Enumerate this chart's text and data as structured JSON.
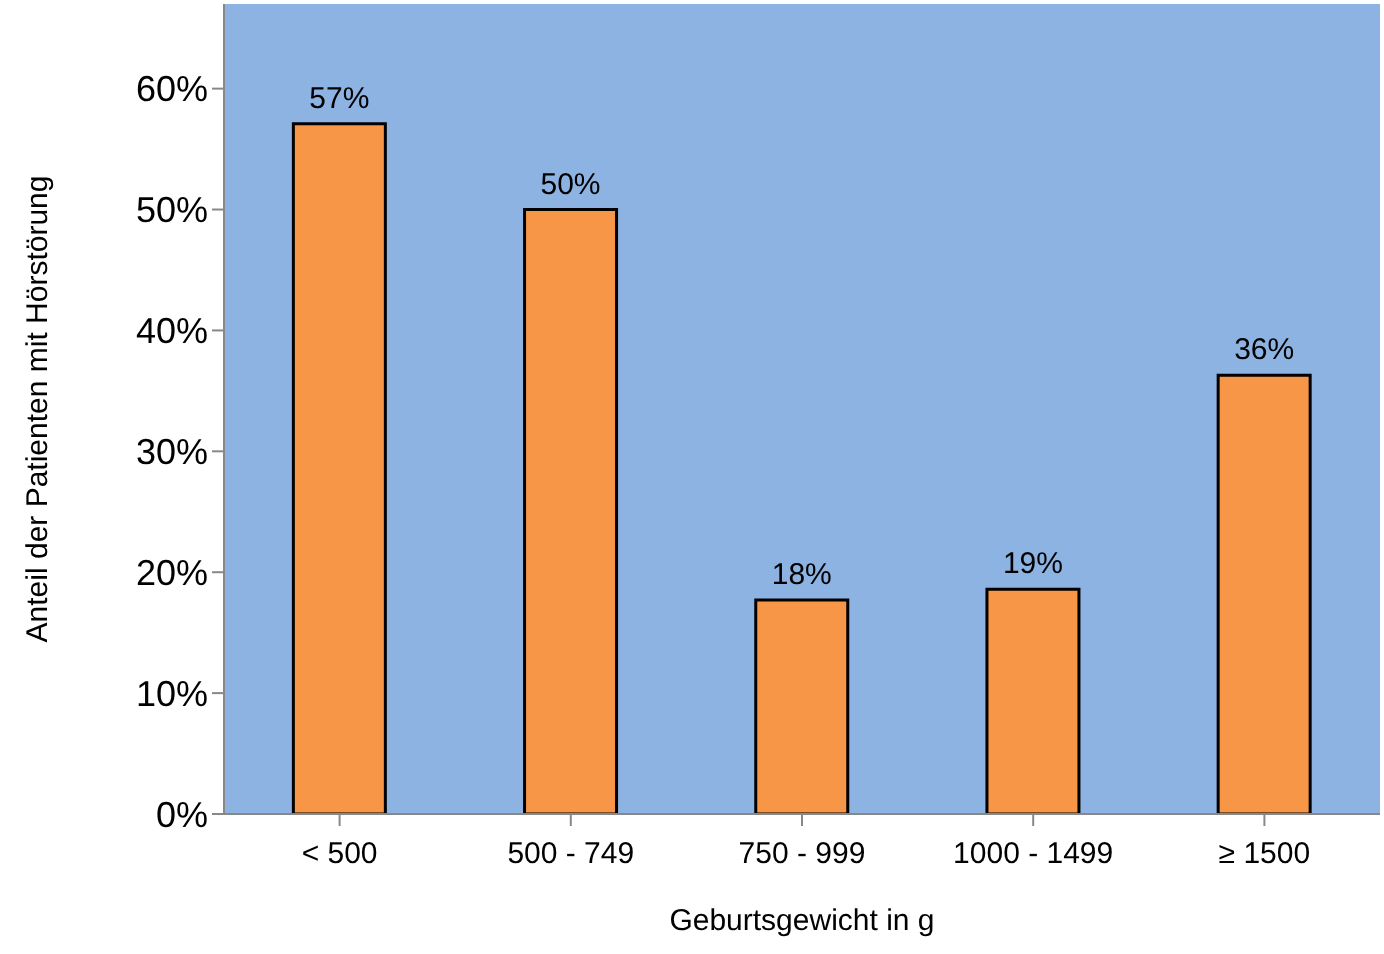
{
  "chart_data": {
    "type": "bar",
    "xlabel": "Geburtsgewicht in g",
    "ylabel": "Anteil der Patienten mit Hörstörung",
    "categories": [
      "< 500",
      "500 - 749",
      "750 - 999",
      "1000 - 1499",
      "≥ 1500"
    ],
    "values": [
      57.1,
      50,
      17.7,
      18.6,
      36.3
    ],
    "value_labels": [
      "57%",
      "50%",
      "18%",
      "19%",
      "36%"
    ],
    "color": "#f79646",
    "ylim": [
      0,
      67
    ],
    "yticks": [
      {
        "value": 0,
        "label": "0%"
      },
      {
        "value": 10,
        "label": "10%"
      },
      {
        "value": 20,
        "label": "20%"
      },
      {
        "value": 30,
        "label": "30%"
      },
      {
        "value": 40,
        "label": "40%"
      },
      {
        "value": 50,
        "label": "50%"
      },
      {
        "value": 60,
        "label": "60%"
      }
    ],
    "grid": false,
    "legend": false
  }
}
